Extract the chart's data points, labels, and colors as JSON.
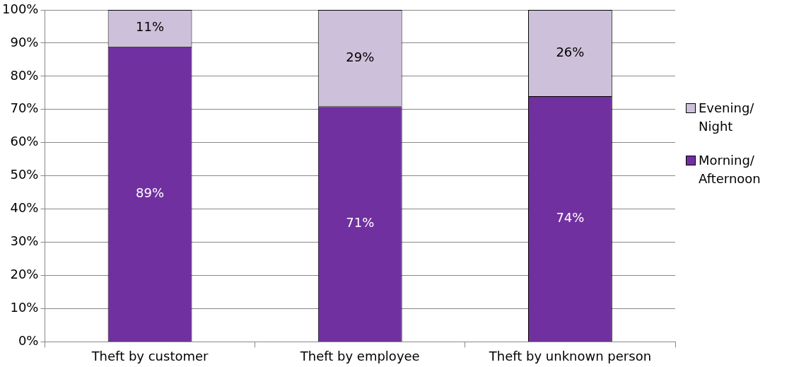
{
  "chart_data": {
    "type": "bar",
    "stacked": true,
    "categories": [
      "Theft by customer",
      "Theft by employee",
      "Theft by unknown person"
    ],
    "series": [
      {
        "name": "Morning/ Afternoon",
        "color": "#7030a0",
        "values": [
          89,
          71,
          74
        ],
        "value_labels": [
          "89%",
          "71%",
          "74%"
        ]
      },
      {
        "name": "Evening/ Night",
        "color": "#ccc0da",
        "values": [
          11,
          29,
          26
        ],
        "value_labels": [
          "11%",
          "29%",
          "26%"
        ]
      }
    ],
    "ylim": [
      0,
      100
    ],
    "yticks": [
      {
        "value": 0,
        "label": "0%"
      },
      {
        "value": 10,
        "label": "10%"
      },
      {
        "value": 20,
        "label": "20%"
      },
      {
        "value": 30,
        "label": "30%"
      },
      {
        "value": 40,
        "label": "40%"
      },
      {
        "value": 50,
        "label": "50%"
      },
      {
        "value": 60,
        "label": "60%"
      },
      {
        "value": 70,
        "label": "70%"
      },
      {
        "value": 80,
        "label": "80%"
      },
      {
        "value": 90,
        "label": "90%"
      },
      {
        "value": 100,
        "label": "100%"
      }
    ],
    "grid": "y",
    "legend": "right"
  }
}
